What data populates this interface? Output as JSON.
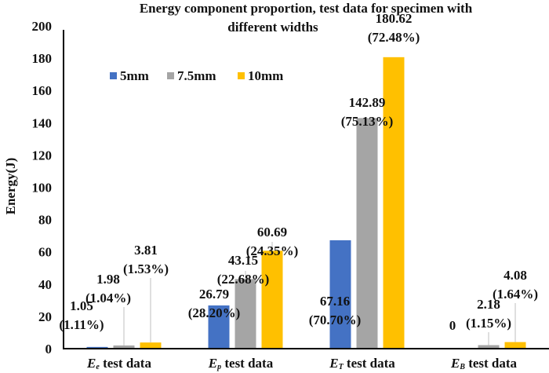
{
  "chart_data": {
    "type": "bar",
    "title": [
      "Energy component proportion, test data for specimen with",
      "different widths"
    ],
    "xlabel": "",
    "ylabel": "Energy(J)",
    "ylim": [
      0,
      200
    ],
    "yticks": [
      0,
      20,
      40,
      60,
      80,
      100,
      120,
      140,
      160,
      180,
      200
    ],
    "grid": false,
    "legend_position": "top-left",
    "categories": [
      {
        "symbol": "E",
        "sub": "e",
        "suffix": " test data"
      },
      {
        "symbol": "E",
        "sub": "p",
        "suffix": " test data"
      },
      {
        "symbol": "E",
        "sub": "T",
        "suffix": " test data"
      },
      {
        "symbol": "E",
        "sub": "B",
        "suffix": " test data"
      }
    ],
    "series": [
      {
        "name": "5mm",
        "color": "#4472C4",
        "values": [
          1.05,
          26.79,
          67.16,
          0
        ],
        "labels": [
          [
            "1.05",
            "(1.11%)"
          ],
          [
            "26.79",
            "(28.20%)"
          ],
          [
            "67.16",
            "(70.70%)"
          ],
          [
            "0"
          ]
        ]
      },
      {
        "name": "7.5mm",
        "color": "#A5A5A5",
        "values": [
          1.98,
          43.15,
          142.89,
          2.18
        ],
        "labels": [
          [
            "1.98",
            "(1.04%)"
          ],
          [
            "43.15",
            "(22.68%)"
          ],
          [
            "142.89",
            "(75.13%)"
          ],
          [
            "2.18",
            "(1.15%)"
          ]
        ]
      },
      {
        "name": "10mm",
        "color": "#FFC000",
        "values": [
          3.81,
          60.69,
          180.62,
          4.08
        ],
        "labels": [
          [
            "3.81",
            "(1.53%)"
          ],
          [
            "60.69",
            "(24.35%)"
          ],
          [
            "180.62",
            "(72.48%)"
          ],
          [
            "4.08",
            "(1.64%)"
          ]
        ]
      }
    ]
  }
}
